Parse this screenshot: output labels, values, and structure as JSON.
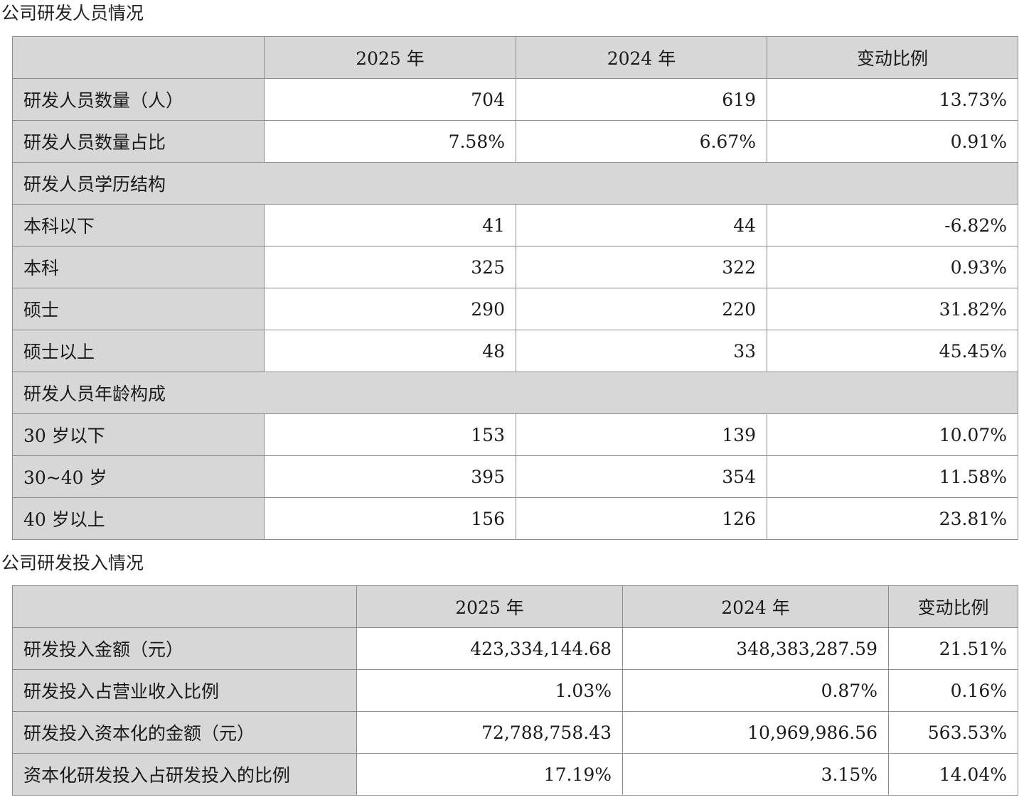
{
  "personnel": {
    "title": "公司研发人员情况",
    "headers": [
      "",
      "2025 年",
      "2024 年",
      "变动比例"
    ],
    "rows": [
      {
        "label": "研发人员数量（人）",
        "v2025": "704",
        "v2024": "619",
        "change": "13.73%"
      },
      {
        "label": "研发人员数量占比",
        "v2025": "7.58%",
        "v2024": "6.67%",
        "change": "0.91%"
      },
      {
        "group": "研发人员学历结构"
      },
      {
        "label": "本科以下",
        "v2025": "41",
        "v2024": "44",
        "change": "-6.82%"
      },
      {
        "label": "本科",
        "v2025": "325",
        "v2024": "322",
        "change": "0.93%"
      },
      {
        "label": "硕士",
        "v2025": "290",
        "v2024": "220",
        "change": "31.82%"
      },
      {
        "label": "硕士以上",
        "v2025": "48",
        "v2024": "33",
        "change": "45.45%"
      },
      {
        "group": "研发人员年龄构成"
      },
      {
        "label": "30 岁以下",
        "v2025": "153",
        "v2024": "139",
        "change": "10.07%"
      },
      {
        "label": "30~40 岁",
        "v2025": "395",
        "v2024": "354",
        "change": "11.58%"
      },
      {
        "label": "40 岁以上",
        "v2025": "156",
        "v2024": "126",
        "change": "23.81%"
      }
    ]
  },
  "investment": {
    "title": "公司研发投入情况",
    "headers": [
      "",
      "2025 年",
      "2024 年",
      "变动比例"
    ],
    "rows": [
      {
        "label": "研发投入金额（元）",
        "v2025": "423,334,144.68",
        "v2024": "348,383,287.59",
        "change": "21.51%"
      },
      {
        "label": "研发投入占营业收入比例",
        "v2025": "1.03%",
        "v2024": "0.87%",
        "change": "0.16%"
      },
      {
        "label": "研发投入资本化的金额（元）",
        "v2025": "72,788,758.43",
        "v2024": "10,969,986.56",
        "change": "563.53%"
      },
      {
        "label": "资本化研发投入占研发投入的比例",
        "v2025": "17.19%",
        "v2024": "3.15%",
        "change": "14.04%"
      }
    ]
  },
  "colors": {
    "header_bg": "#d7d7d7",
    "border": "#8c8c8c",
    "text": "#1a1a1a"
  }
}
